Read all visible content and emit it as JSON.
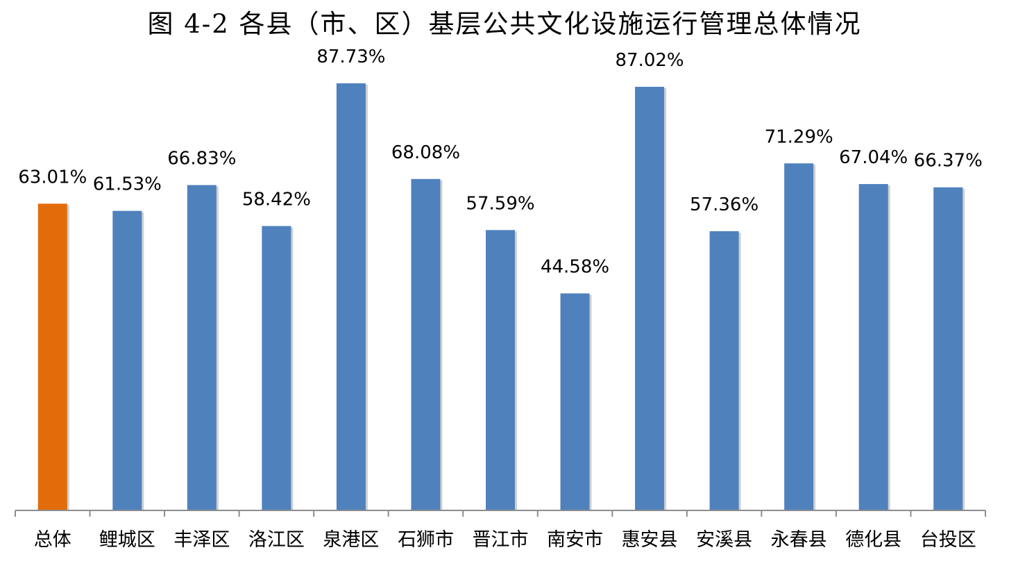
{
  "chart_data": {
    "type": "bar",
    "title": "图 4-2 各县（市、区）基层公共文化设施运行管理总体情况",
    "categories": [
      "总体",
      "鲤城区",
      "丰泽区",
      "洛江区",
      "泉港区",
      "石狮市",
      "晋江市",
      "南安市",
      "惠安县",
      "安溪县",
      "永春县",
      "德化县",
      "台投区"
    ],
    "values": [
      63.01,
      61.53,
      66.83,
      58.42,
      87.73,
      68.08,
      57.59,
      44.58,
      87.02,
      57.36,
      71.29,
      67.04,
      66.37
    ],
    "value_labels": [
      "63.01%",
      "61.53%",
      "66.83%",
      "58.42%",
      "87.73%",
      "68.08%",
      "57.59%",
      "44.58%",
      "87.02%",
      "57.36%",
      "71.29%",
      "67.04%",
      "66.37%"
    ],
    "bar_colors": [
      "#E36C0A",
      "#4F81BD",
      "#4F81BD",
      "#4F81BD",
      "#4F81BD",
      "#4F81BD",
      "#4F81BD",
      "#4F81BD",
      "#4F81BD",
      "#4F81BD",
      "#4F81BD",
      "#4F81BD",
      "#4F81BD"
    ],
    "xlabel": "",
    "ylabel": "",
    "ylim": [
      0,
      100
    ],
    "grid": false,
    "legend": "none",
    "y_axis_visible": false
  }
}
